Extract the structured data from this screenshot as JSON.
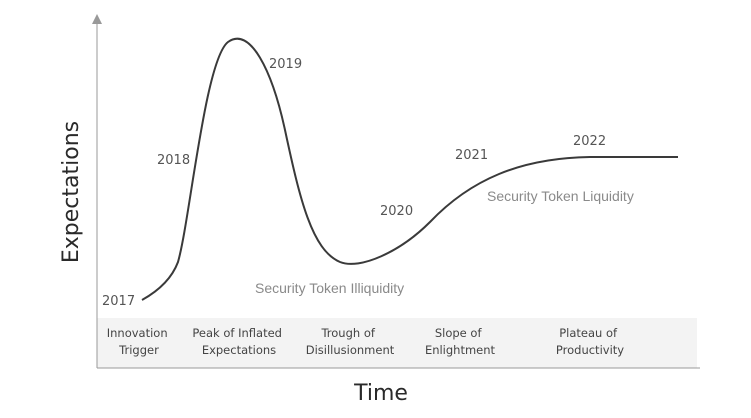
{
  "diagram": {
    "axes": {
      "y_label": "Expectations",
      "x_label": "Time"
    },
    "years": [
      {
        "label": "2017"
      },
      {
        "label": "2018"
      },
      {
        "label": "2019"
      },
      {
        "label": "2020"
      },
      {
        "label": "2021"
      },
      {
        "label": "2022"
      }
    ],
    "zone_labels": {
      "illiquidity": "Security Token Illiquidity",
      "liquidity": "Security Token Liquidity"
    },
    "phases": [
      {
        "line1": "Innovation",
        "line2": "Trigger"
      },
      {
        "line1": "Peak of Inflated",
        "line2": "Expectations"
      },
      {
        "line1": "Trough of",
        "line2": "Disillusionment"
      },
      {
        "line1": "Slope of",
        "line2": "Enlightment"
      },
      {
        "line1": "Plateau of",
        "line2": "Productivity"
      }
    ],
    "colors": {
      "curve": "#3a3a3a",
      "axis": "#999999",
      "phase_band": "#f3f3f3"
    }
  }
}
